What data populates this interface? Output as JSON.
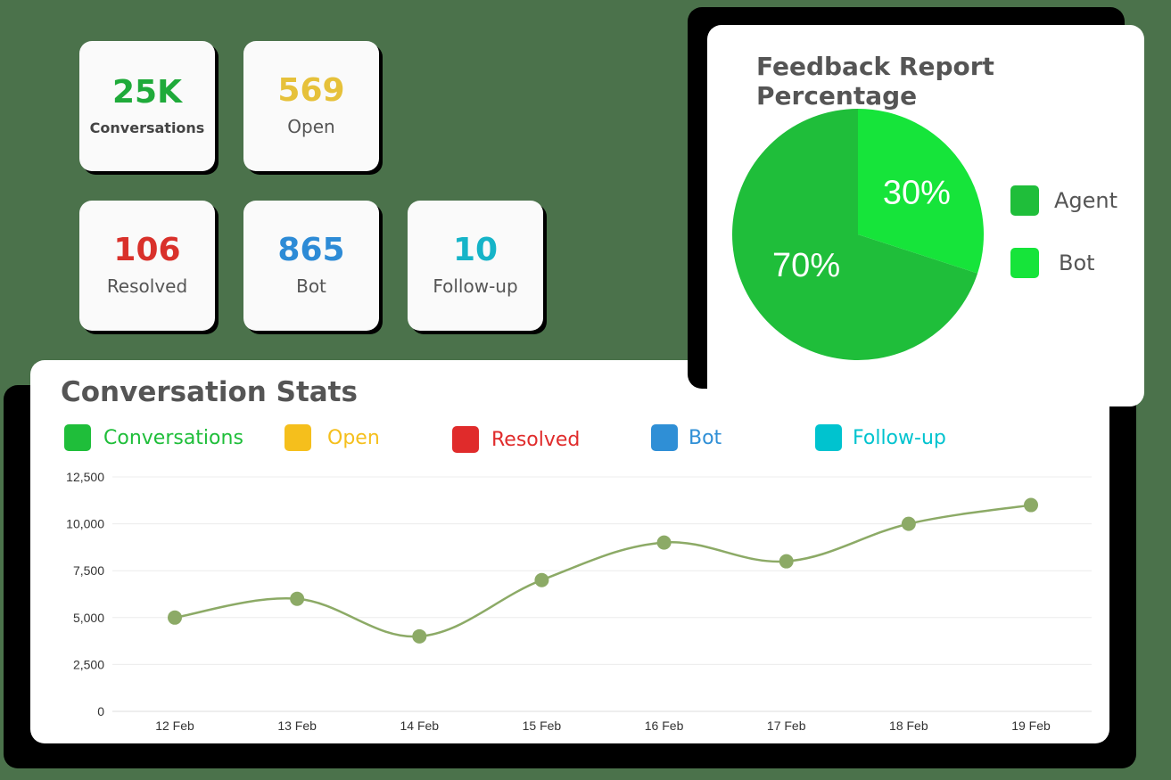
{
  "stats": [
    {
      "value": "25K",
      "label": "Conversations",
      "color": "#1faa3a"
    },
    {
      "value": "569",
      "label": "Open",
      "color": "#e6c13a"
    },
    {
      "value": "106",
      "label": "Resolved",
      "color": "#d9312b"
    },
    {
      "value": "865",
      "label": "Bot",
      "color": "#2d8bd6"
    },
    {
      "value": "10",
      "label": "Follow-up",
      "color": "#16b4c8"
    }
  ],
  "feedback": {
    "title": "Feedback Report Percentage",
    "legend": [
      {
        "label": "Agent",
        "color": "#1fbe3a"
      },
      {
        "label": "Bot",
        "color": "#16e43a"
      }
    ]
  },
  "conversation_stats": {
    "title": "Conversation Stats",
    "legend": [
      {
        "label": "Conversations",
        "color": "#1fbe3a"
      },
      {
        "label": "Open",
        "color": "#f5bf1c"
      },
      {
        "label": "Resolved",
        "color": "#e02b2b"
      },
      {
        "label": "Bot",
        "color": "#2f8fd6"
      },
      {
        "label": "Follow-up",
        "color": "#00c3cf"
      }
    ]
  },
  "chart_data": [
    {
      "type": "pie",
      "title": "Feedback Report Percentage",
      "categories": [
        "Agent",
        "Bot"
      ],
      "values": [
        70,
        30
      ],
      "labels": [
        "70%",
        "30%"
      ],
      "colors": [
        "#1fbe3a",
        "#16e43a"
      ],
      "legend": "right"
    },
    {
      "type": "line",
      "title": "Conversation Stats",
      "x": [
        "12 Feb",
        "13 Feb",
        "14 Feb",
        "15 Feb",
        "16 Feb",
        "17 Feb",
        "18 Feb",
        "19 Feb"
      ],
      "series": [
        {
          "values": [
            5000,
            6000,
            4000,
            7000,
            9000,
            8000,
            10000,
            11000
          ],
          "color": "#8caa66"
        }
      ],
      "ylim": [
        0,
        12500
      ],
      "yticks": [
        "0",
        "2,500",
        "5,000",
        "7,500",
        "10,000",
        "12,500"
      ],
      "ytick_values": [
        0,
        2500,
        5000,
        7500,
        10000,
        12500
      ],
      "grid": true
    }
  ]
}
